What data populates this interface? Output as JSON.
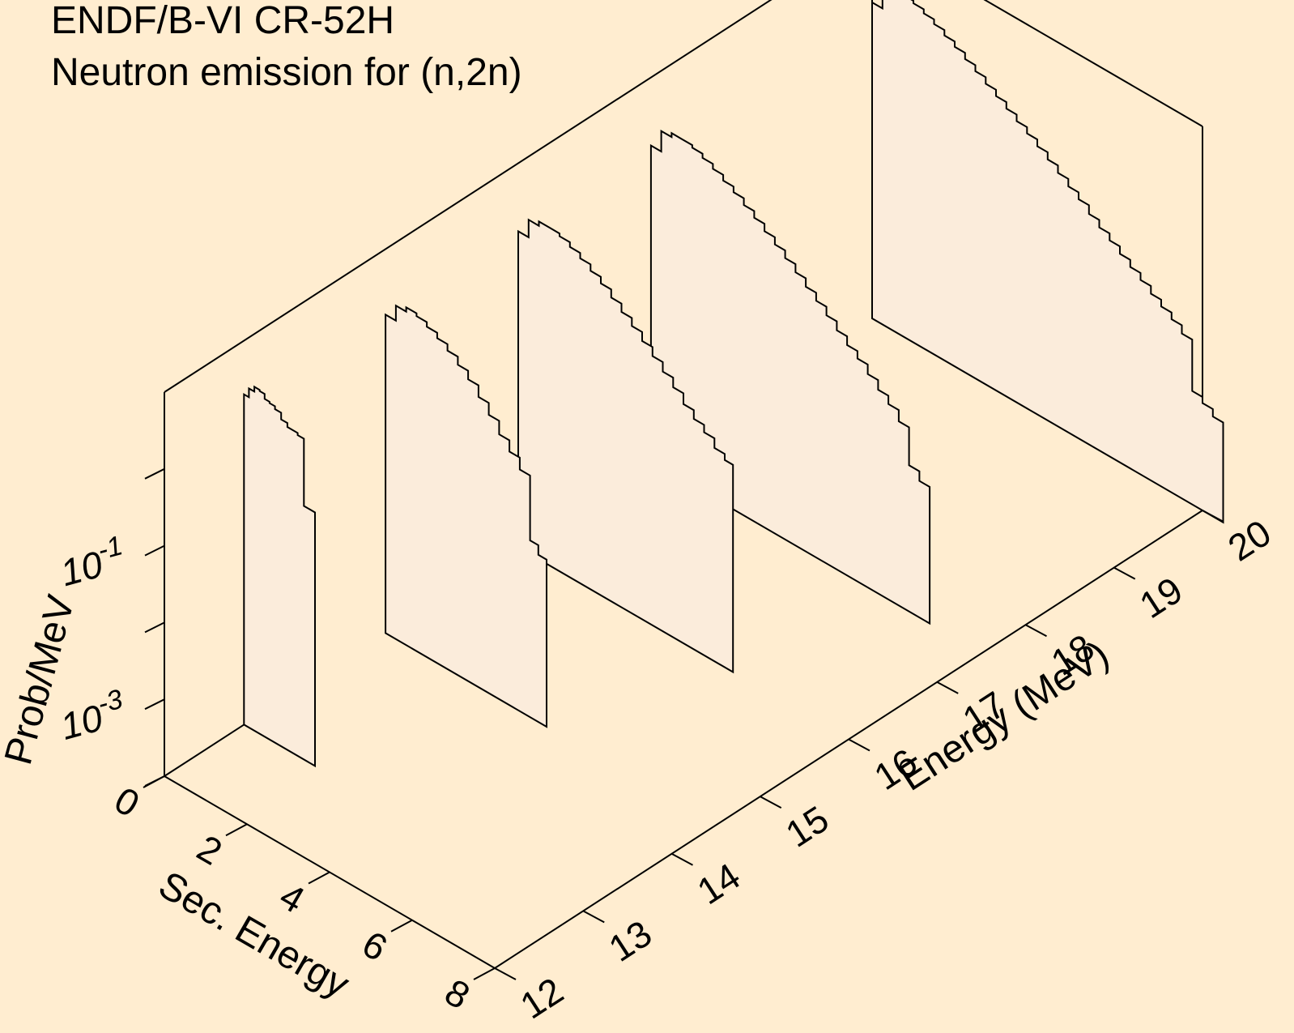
{
  "colors": {
    "background": "#ffedd0",
    "panel_fill": "#fbecdb",
    "line": "#000000"
  },
  "title": "ENDF/B-VI CR-52H",
  "subtitle": "Neutron emission for (n,2n)",
  "chart_data": {
    "type": "area",
    "projection": "3d-waterfall",
    "title": "ENDF/B-VI CR-52H",
    "subtitle": "Neutron emission for (n,2n)",
    "x_axis": {
      "label": "Sec. Energy",
      "range": [
        0,
        8
      ],
      "ticks": [
        "0",
        "2",
        "4",
        "6",
        "8"
      ]
    },
    "z_axis": {
      "label": "Energy (MeV)",
      "range": [
        12,
        20
      ],
      "ticks": [
        "12",
        "13",
        "14",
        "15",
        "16",
        "17",
        "18",
        "19",
        "20"
      ]
    },
    "y_axis": {
      "label": "Prob/MeV",
      "scale": "log",
      "range": [
        0.0001,
        10
      ],
      "major_ticks": [
        {
          "value": 0.001,
          "base": "10",
          "exp": "-3"
        },
        {
          "value": 0.1,
          "base": "10",
          "exp": "-1"
        }
      ],
      "minor_ticks": [
        0.01,
        1
      ]
    },
    "series": [
      {
        "energy": 12.9,
        "sec_energy": [
          0.0,
          0.12,
          0.25,
          0.38,
          0.5,
          0.62,
          0.75,
          0.9,
          1.05,
          1.3,
          1.45,
          1.6,
          1.72
        ],
        "prob": [
          2.0,
          2.6,
          3.0,
          2.9,
          2.5,
          2.4,
          2.2,
          1.8,
          1.6,
          1.5,
          0.2,
          0.2,
          2.5e-05
        ]
      },
      {
        "energy": 14.5,
        "sec_energy": [
          0.0,
          0.25,
          0.5,
          0.75,
          1.0,
          1.25,
          1.5,
          1.75,
          2.0,
          2.25,
          2.5,
          2.75,
          3.0,
          3.25,
          3.5,
          3.7,
          3.9
        ],
        "prob": [
          1.4,
          2.2,
          2.5,
          2.3,
          2.0,
          1.7,
          1.4,
          1.1,
          0.85,
          0.6,
          0.42,
          0.28,
          0.2,
          0.14,
          0.02,
          0.015,
          0.0004
        ]
      },
      {
        "energy": 16.0,
        "sec_energy": [
          0.0,
          0.25,
          0.5,
          0.75,
          1.0,
          1.25,
          1.5,
          1.75,
          2.0,
          2.25,
          2.5,
          2.75,
          3.0,
          3.25,
          3.5,
          3.75,
          4.0,
          4.25,
          4.5,
          4.75,
          5.0,
          5.2
        ],
        "prob": [
          1.3,
          2.2,
          2.5,
          2.5,
          2.3,
          2.0,
          1.7,
          1.4,
          1.15,
          0.9,
          0.7,
          0.55,
          0.42,
          0.32,
          0.24,
          0.18,
          0.13,
          0.1,
          0.08,
          0.06,
          0.05,
          0.0005
        ]
      },
      {
        "energy": 17.5,
        "sec_energy": [
          0.0,
          0.25,
          0.5,
          0.75,
          1.0,
          1.25,
          1.5,
          1.75,
          2.0,
          2.25,
          2.5,
          2.75,
          3.0,
          3.25,
          3.5,
          3.75,
          4.0,
          4.25,
          4.5,
          4.75,
          5.0,
          5.25,
          5.5,
          5.75,
          6.0,
          6.25,
          6.5,
          6.75
        ],
        "prob": [
          1.3,
          2.4,
          2.7,
          2.7,
          2.5,
          2.2,
          1.9,
          1.6,
          1.35,
          1.1,
          0.9,
          0.72,
          0.58,
          0.46,
          0.36,
          0.28,
          0.22,
          0.17,
          0.13,
          0.1,
          0.08,
          0.06,
          0.045,
          0.035,
          0.025,
          0.008,
          0.006,
          0.0004
        ]
      },
      {
        "energy": 20.0,
        "sec_energy": [
          0.0,
          0.25,
          0.5,
          0.75,
          1.0,
          1.25,
          1.5,
          1.75,
          2.0,
          2.25,
          2.5,
          2.75,
          3.0,
          3.25,
          3.5,
          3.75,
          4.0,
          4.25,
          4.5,
          4.75,
          5.0,
          5.25,
          5.5,
          5.75,
          6.0,
          6.25,
          6.5,
          6.75,
          7.0,
          7.25,
          7.5,
          7.75,
          8.0,
          8.25,
          8.5
        ],
        "prob": [
          1.3,
          2.4,
          2.8,
          2.8,
          2.6,
          2.3,
          2.0,
          1.7,
          1.45,
          1.2,
          1.0,
          0.82,
          0.68,
          0.56,
          0.46,
          0.38,
          0.31,
          0.25,
          0.2,
          0.16,
          0.13,
          0.1,
          0.08,
          0.065,
          0.052,
          0.042,
          0.034,
          0.027,
          0.022,
          0.018,
          0.014,
          0.003,
          0.0025,
          0.002,
          0.0003
        ]
      }
    ],
    "grid": false,
    "legend": "none"
  }
}
